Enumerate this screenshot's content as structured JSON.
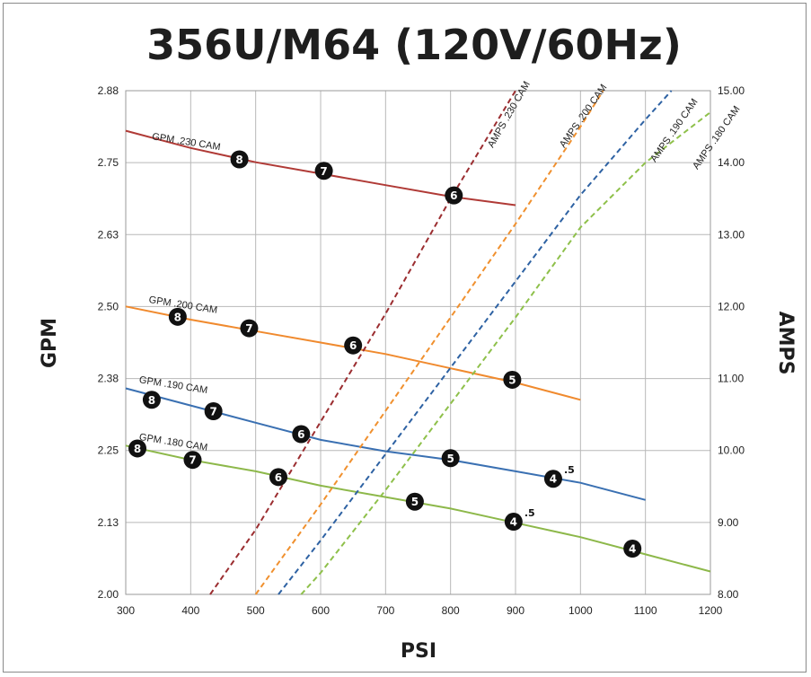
{
  "chart_data": {
    "type": "line",
    "title": "356U/M64 (120V/60Hz)",
    "xlabel": "PSI",
    "ylabel": "GPM",
    "y2label": "AMPS",
    "xlim": [
      300,
      1200
    ],
    "ylim": [
      2.0,
      2.88
    ],
    "y2lim": [
      8.0,
      15.0
    ],
    "xticks": [
      "300",
      "400",
      "500",
      "600",
      "700",
      "800",
      "900",
      "1000",
      "1100",
      "1200"
    ],
    "yticks": [
      "2.00",
      "2.13",
      "2.25",
      "2.38",
      "2.50",
      "2.63",
      "2.75",
      "2.88"
    ],
    "y2ticks": [
      "8.00",
      "9.00",
      "10.00",
      "11.00",
      "12.00",
      "13.00",
      "14.00",
      "15.00"
    ],
    "grid": true,
    "series": [
      {
        "name": "GPM .230 CAM",
        "axis": "left",
        "style": "solid",
        "color": "#b03a36",
        "x": [
          300,
          400,
          500,
          600,
          700,
          800,
          900
        ],
        "y": [
          2.81,
          2.78,
          2.755,
          2.735,
          2.715,
          2.695,
          2.68
        ]
      },
      {
        "name": "GPM .200 CAM",
        "axis": "left",
        "style": "solid",
        "color": "#f08a2e",
        "x": [
          300,
          400,
          500,
          600,
          700,
          800,
          900,
          1000
        ],
        "y": [
          2.503,
          2.48,
          2.46,
          2.44,
          2.42,
          2.395,
          2.37,
          2.34
        ]
      },
      {
        "name": "GPM .190 CAM",
        "axis": "left",
        "style": "solid",
        "color": "#3a70b2",
        "x": [
          300,
          400,
          500,
          600,
          700,
          800,
          900,
          1000,
          1100
        ],
        "y": [
          2.36,
          2.33,
          2.3,
          2.27,
          2.25,
          2.235,
          2.215,
          2.195,
          2.165
        ]
      },
      {
        "name": "GPM .180 CAM",
        "axis": "left",
        "style": "solid",
        "color": "#8db84a",
        "x": [
          300,
          400,
          500,
          600,
          700,
          800,
          900,
          1000,
          1100,
          1200
        ],
        "y": [
          2.26,
          2.235,
          2.215,
          2.19,
          2.17,
          2.15,
          2.125,
          2.1,
          2.07,
          2.04
        ]
      },
      {
        "name": "AMPS .230 CAM",
        "axis": "right",
        "style": "dashed",
        "color": "#9b2d30",
        "x": [
          430,
          500,
          600,
          700,
          800,
          900
        ],
        "y": [
          8.0,
          8.9,
          10.4,
          11.9,
          13.5,
          15.0
        ]
      },
      {
        "name": "AMPS .200 CAM",
        "axis": "right",
        "style": "dashed",
        "color": "#f0902e",
        "x": [
          500,
          600,
          700,
          800,
          900,
          1000,
          1035
        ],
        "y": [
          8.0,
          9.25,
          10.55,
          11.85,
          13.15,
          14.5,
          15.0
        ]
      },
      {
        "name": "AMPS .190 CAM",
        "axis": "right",
        "style": "dashed",
        "color": "#2e62a3",
        "x": [
          535,
          600,
          700,
          800,
          900,
          1000,
          1100,
          1140
        ],
        "y": [
          8.0,
          8.75,
          9.95,
          11.15,
          12.35,
          13.55,
          14.6,
          15.0
        ]
      },
      {
        "name": "AMPS .180 CAM",
        "axis": "right",
        "style": "dashed",
        "color": "#8ec04a",
        "x": [
          570,
          600,
          700,
          800,
          900,
          1000,
          1100,
          1200
        ],
        "y": [
          8.0,
          8.3,
          9.45,
          10.65,
          11.85,
          13.1,
          14.0,
          14.7
        ]
      }
    ],
    "annotations": [
      {
        "series": "GPM .230 CAM",
        "x": 475,
        "y": 2.76,
        "text": "8",
        "suffix": ""
      },
      {
        "series": "GPM .230 CAM",
        "x": 605,
        "y": 2.74,
        "text": "7",
        "suffix": ""
      },
      {
        "series": "GPM .230 CAM",
        "x": 805,
        "y": 2.697,
        "text": "6",
        "suffix": ""
      },
      {
        "series": "GPM .200 CAM",
        "x": 380,
        "y": 2.485,
        "text": "8",
        "suffix": ""
      },
      {
        "series": "GPM .200 CAM",
        "x": 490,
        "y": 2.465,
        "text": "7",
        "suffix": ""
      },
      {
        "series": "GPM .200 CAM",
        "x": 650,
        "y": 2.435,
        "text": "6",
        "suffix": ""
      },
      {
        "series": "GPM .200 CAM",
        "x": 895,
        "y": 2.375,
        "text": "5",
        "suffix": ""
      },
      {
        "series": "GPM .190 CAM",
        "x": 340,
        "y": 2.34,
        "text": "8",
        "suffix": ""
      },
      {
        "series": "GPM .190 CAM",
        "x": 435,
        "y": 2.32,
        "text": "7",
        "suffix": ""
      },
      {
        "series": "GPM .190 CAM",
        "x": 570,
        "y": 2.28,
        "text": "6",
        "suffix": ""
      },
      {
        "series": "GPM .190 CAM",
        "x": 800,
        "y": 2.238,
        "text": "5",
        "suffix": ""
      },
      {
        "series": "GPM .190 CAM",
        "x": 958,
        "y": 2.202,
        "text": "4",
        "suffix": ".5"
      },
      {
        "series": "GPM .180 CAM",
        "x": 318,
        "y": 2.255,
        "text": "8",
        "suffix": ""
      },
      {
        "series": "GPM .180 CAM",
        "x": 403,
        "y": 2.235,
        "text": "7",
        "suffix": ""
      },
      {
        "series": "GPM .180 CAM",
        "x": 535,
        "y": 2.205,
        "text": "6",
        "suffix": ""
      },
      {
        "series": "GPM .180 CAM",
        "x": 745,
        "y": 2.162,
        "text": "5",
        "suffix": ""
      },
      {
        "series": "GPM .180 CAM",
        "x": 897,
        "y": 2.127,
        "text": "4",
        "suffix": ".5"
      },
      {
        "series": "GPM .180 CAM",
        "x": 1080,
        "y": 2.08,
        "text": "4",
        "suffix": ""
      }
    ],
    "series_labels": [
      {
        "text": "GPM .230 CAM",
        "x": 340,
        "y": 2.795,
        "rotate": 9
      },
      {
        "text": "GPM .200 CAM",
        "x": 335,
        "y": 2.51,
        "rotate": 9
      },
      {
        "text": "GPM .190 CAM",
        "x": 320,
        "y": 2.37,
        "rotate": 9
      },
      {
        "text": "GPM .180 CAM",
        "x": 320,
        "y": 2.27,
        "rotate": 9
      },
      {
        "text": "AMPS .230 CAM",
        "x": 865,
        "y": 14.2,
        "rotate": -60
      },
      {
        "text": "AMPS .200 CAM",
        "x": 975,
        "y": 14.2,
        "rotate": -55
      },
      {
        "text": "AMPS .190 CAM",
        "x": 1115,
        "y": 14.0,
        "rotate": -55
      },
      {
        "text": "AMPS .180 CAM",
        "x": 1180,
        "y": 13.9,
        "rotate": -55
      }
    ]
  }
}
